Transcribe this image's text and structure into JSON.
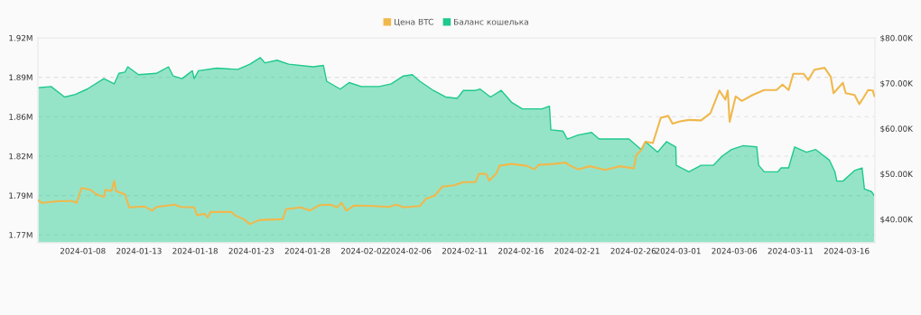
{
  "chart_data": {
    "type": "area",
    "xlim": [
      "2024-01-04",
      "2024-03-18T12:30"
    ],
    "xticks": [
      "2024-01-08",
      "2024-01-13",
      "2024-01-18",
      "2024-01-23",
      "2024-01-28",
      "2024-02-02",
      "2024-02-06",
      "2024-02-11",
      "2024-02-16",
      "2024-02-21",
      "2024-02-26",
      "2024-03-01",
      "2024-03-06",
      "2024-03-11",
      "2024-03-16"
    ],
    "ylim": [
      1.759,
      1.915
    ],
    "yticks": [
      {
        "value": 1.765,
        "label": "1.77M"
      },
      {
        "value": 1.795,
        "label": "1.79M"
      },
      {
        "value": 1.825,
        "label": "1.82M"
      },
      {
        "value": 1.855,
        "label": "1.86M"
      },
      {
        "value": 1.885,
        "label": "1.89M"
      },
      {
        "value": 1.915,
        "label": "1.92M"
      }
    ],
    "y2lim": [
      34.8,
      80
    ],
    "y2ticks": [
      {
        "value": 40,
        "label": "$40.00K"
      },
      {
        "value": 50,
        "label": "$50.00K"
      },
      {
        "value": 60,
        "label": "$60.00K"
      },
      {
        "value": 70,
        "label": "$70.00K"
      },
      {
        "value": 80,
        "label": "$80.00K"
      }
    ],
    "grid": "y",
    "legend": "top",
    "series": [
      {
        "name": "Цена BTC",
        "type": "line",
        "axis": "y2",
        "color": "#f0b84c",
        "x": [
          "2024-01-04T00:00",
          "2024-01-04T09:00",
          "2024-01-05T23:00",
          "2024-01-07T01:00",
          "2024-01-07T11:00",
          "2024-01-07T21:00",
          "2024-01-08T16:00",
          "2024-01-09T05:00",
          "2024-01-09T21:00",
          "2024-01-10T00:00",
          "2024-01-10T13:00",
          "2024-01-10T19:00",
          "2024-01-10T23:00",
          "2024-01-11T18:00",
          "2024-01-12T03:00",
          "2024-01-13T12:00",
          "2024-01-14T04:00",
          "2024-01-14T13:00",
          "2024-01-16T04:00",
          "2024-01-16T17:00",
          "2024-01-17T22:00",
          "2024-01-18T04:00",
          "2024-01-18T20:00",
          "2024-01-19T03:00",
          "2024-01-19T09:00",
          "2024-01-21T06:00",
          "2024-01-21T12:00",
          "2024-01-22T08:00",
          "2024-01-22T21:00",
          "2024-01-23T16:00",
          "2024-01-24T11:00",
          "2024-01-25T19:00",
          "2024-01-26T02:00",
          "2024-01-27T10:00",
          "2024-01-28T05:00",
          "2024-01-29T01:00",
          "2024-01-30T02:00",
          "2024-01-30T15:00",
          "2024-01-31T01:00",
          "2024-01-31T11:00",
          "2024-02-01T03:00",
          "2024-02-02T20:00",
          "2024-02-04T05:00",
          "2024-02-04T23:00",
          "2024-02-05T13:00",
          "2024-02-07T00:00",
          "2024-02-07T13:00",
          "2024-02-08T08:00",
          "2024-02-09T00:00",
          "2024-02-10T02:00",
          "2024-02-10T21:00",
          "2024-02-11T23:00",
          "2024-02-12T06:00",
          "2024-02-12T22:00",
          "2024-02-13T04:00",
          "2024-02-13T20:00",
          "2024-02-14T02:00",
          "2024-02-15T04:00",
          "2024-02-16T12:00",
          "2024-02-17T05:00",
          "2024-02-17T14:00",
          "2024-02-18T22:00",
          "2024-02-20T00:00",
          "2024-02-20T06:00",
          "2024-02-21T02:00",
          "2024-02-22T03:00",
          "2024-02-23T12:00",
          "2024-02-24T20:00",
          "2024-02-26T01:00",
          "2024-02-26T07:00",
          "2024-02-26T17:00",
          "2024-02-27T02:00",
          "2024-02-27T18:00",
          "2024-02-28T01:00",
          "2024-02-28T11:00",
          "2024-02-29T03:00",
          "2024-02-29T12:00",
          "2024-03-01T04:00",
          "2024-03-01T23:00",
          "2024-03-03T01:00",
          "2024-03-03T21:00",
          "2024-03-04T16:00",
          "2024-03-05T05:00",
          "2024-03-05T10:00",
          "2024-03-05T14:00",
          "2024-03-06T03:00",
          "2024-03-06T16:00",
          "2024-03-07T15:00",
          "2024-03-08T16:00",
          "2024-03-09T18:00",
          "2024-03-10T07:00",
          "2024-03-10T20:00",
          "2024-03-11T06:00",
          "2024-03-12T04:00",
          "2024-03-12T14:00",
          "2024-03-13T03:00",
          "2024-03-14T01:00",
          "2024-03-14T14:00",
          "2024-03-14T20:00",
          "2024-03-15T16:00",
          "2024-03-15T22:00",
          "2024-03-16T17:00",
          "2024-03-17T03:00",
          "2024-03-17T12:00",
          "2024-03-17T22:00",
          "2024-03-18T08:00",
          "2024-03-18T11:00"
        ],
        "values": [
          44.2,
          43.6,
          44.0,
          44.0,
          43.6,
          46.9,
          46.5,
          45.5,
          44.9,
          46.5,
          46.2,
          48.5,
          46.2,
          45.5,
          42.6,
          42.8,
          41.9,
          42.7,
          43.2,
          42.7,
          42.6,
          40.9,
          41.2,
          40.4,
          41.6,
          41.6,
          40.9,
          40.0,
          38.9,
          39.8,
          39.9,
          40.0,
          42.2,
          42.6,
          41.9,
          43.1,
          43.2,
          42.6,
          43.6,
          41.9,
          43.0,
          42.9,
          42.7,
          43.2,
          42.6,
          42.9,
          44.5,
          45.2,
          47.2,
          47.5,
          48.2,
          48.2,
          50.0,
          50.0,
          48.5,
          50.2,
          51.8,
          52.2,
          51.8,
          51.0,
          52.0,
          52.2,
          52.5,
          52.0,
          51.0,
          51.7,
          50.9,
          51.7,
          51.2,
          54.2,
          55.2,
          57.1,
          56.8,
          59.1,
          62.4,
          62.8,
          61.1,
          61.6,
          61.9,
          61.8,
          63.4,
          68.4,
          66.4,
          68.4,
          61.5,
          67.1,
          66.1,
          67.4,
          68.5,
          68.5,
          69.7,
          68.5,
          72.1,
          72.1,
          70.7,
          73.0,
          73.4,
          71.4,
          67.8,
          70.1,
          67.8,
          67.4,
          65.4,
          66.8,
          68.5,
          68.4,
          67.2
        ]
      },
      {
        "name": "Баланс кошелька",
        "axis": "y",
        "color": "#1dc98c",
        "x": [
          "2024-01-04T00:00",
          "2024-01-05T04:00",
          "2024-01-06T09:00",
          "2024-01-07T08:00",
          "2024-01-08T09:00",
          "2024-01-09T21:00",
          "2024-01-10T19:00",
          "2024-01-11T05:00",
          "2024-01-11T18:00",
          "2024-01-12T00:00",
          "2024-01-12T23:00",
          "2024-01-14T13:00",
          "2024-01-15T15:00",
          "2024-01-16T01:00",
          "2024-01-16T20:00",
          "2024-01-17T18:00",
          "2024-01-17T22:00",
          "2024-01-18T07:00",
          "2024-01-19T22:00",
          "2024-01-21T19:00",
          "2024-01-22T21:00",
          "2024-01-23T19:00",
          "2024-01-24T05:00",
          "2024-01-25T07:00",
          "2024-01-26T08:00",
          "2024-01-28T12:00",
          "2024-01-29T10:00",
          "2024-01-29T17:00",
          "2024-01-30T22:00",
          "2024-01-31T17:00",
          "2024-02-01T19:00",
          "2024-02-03T09:00",
          "2024-02-04T11:00",
          "2024-02-05T13:00",
          "2024-02-06T08:00",
          "2024-02-07T00:00",
          "2024-02-08T05:00",
          "2024-02-09T07:00",
          "2024-02-10T08:00",
          "2024-02-10T21:00",
          "2024-02-11T23:00",
          "2024-02-12T09:00",
          "2024-02-13T07:00",
          "2024-02-14T06:00",
          "2024-02-15T04:00",
          "2024-02-16T03:00",
          "2024-02-17T21:00",
          "2024-02-18T13:00",
          "2024-02-18T16:00",
          "2024-02-19T18:00",
          "2024-02-20T03:00",
          "2024-02-21T02:00",
          "2024-02-22T07:00",
          "2024-02-22T23:00",
          "2024-02-25T15:00",
          "2024-02-26T17:00",
          "2024-02-27T02:00",
          "2024-02-28T04:00",
          "2024-02-28T23:00",
          "2024-02-29T19:00",
          "2024-02-29T20:00",
          "2024-03-01T23:00",
          "2024-03-03T01:00",
          "2024-03-04T03:00",
          "2024-03-04T22:00",
          "2024-03-05T18:00",
          "2024-03-06T19:00",
          "2024-03-08T00:00",
          "2024-03-08T04:00",
          "2024-03-08T16:00",
          "2024-03-09T21:00",
          "2024-03-10T04:00",
          "2024-03-10T20:00",
          "2024-03-11T09:00",
          "2024-03-12T10:00",
          "2024-03-13T06:00",
          "2024-03-14T11:00",
          "2024-03-14T23:00",
          "2024-03-15T03:00",
          "2024-03-15T16:00",
          "2024-03-16T17:00",
          "2024-03-17T09:00",
          "2024-03-17T14:00",
          "2024-03-18T05:00",
          "2024-03-18T11:00"
        ],
        "values": [
          1.877,
          1.878,
          1.87,
          1.872,
          1.876,
          1.884,
          1.88,
          1.888,
          1.889,
          1.893,
          1.887,
          1.888,
          1.893,
          1.886,
          1.884,
          1.89,
          1.884,
          1.89,
          1.892,
          1.891,
          1.895,
          1.9,
          1.896,
          1.898,
          1.895,
          1.893,
          1.894,
          1.882,
          1.876,
          1.881,
          1.878,
          1.878,
          1.88,
          1.886,
          1.887,
          1.882,
          1.875,
          1.87,
          1.869,
          1.875,
          1.875,
          1.876,
          1.87,
          1.875,
          1.866,
          1.861,
          1.861,
          1.863,
          1.845,
          1.844,
          1.838,
          1.841,
          1.843,
          1.838,
          1.838,
          1.83,
          1.836,
          1.828,
          1.836,
          1.832,
          1.818,
          1.813,
          1.818,
          1.818,
          1.825,
          1.83,
          1.833,
          1.832,
          1.818,
          1.813,
          1.813,
          1.816,
          1.816,
          1.832,
          1.828,
          1.83,
          1.822,
          1.813,
          1.806,
          1.806,
          1.814,
          1.816,
          1.8,
          1.798,
          1.795
        ]
      }
    ]
  }
}
